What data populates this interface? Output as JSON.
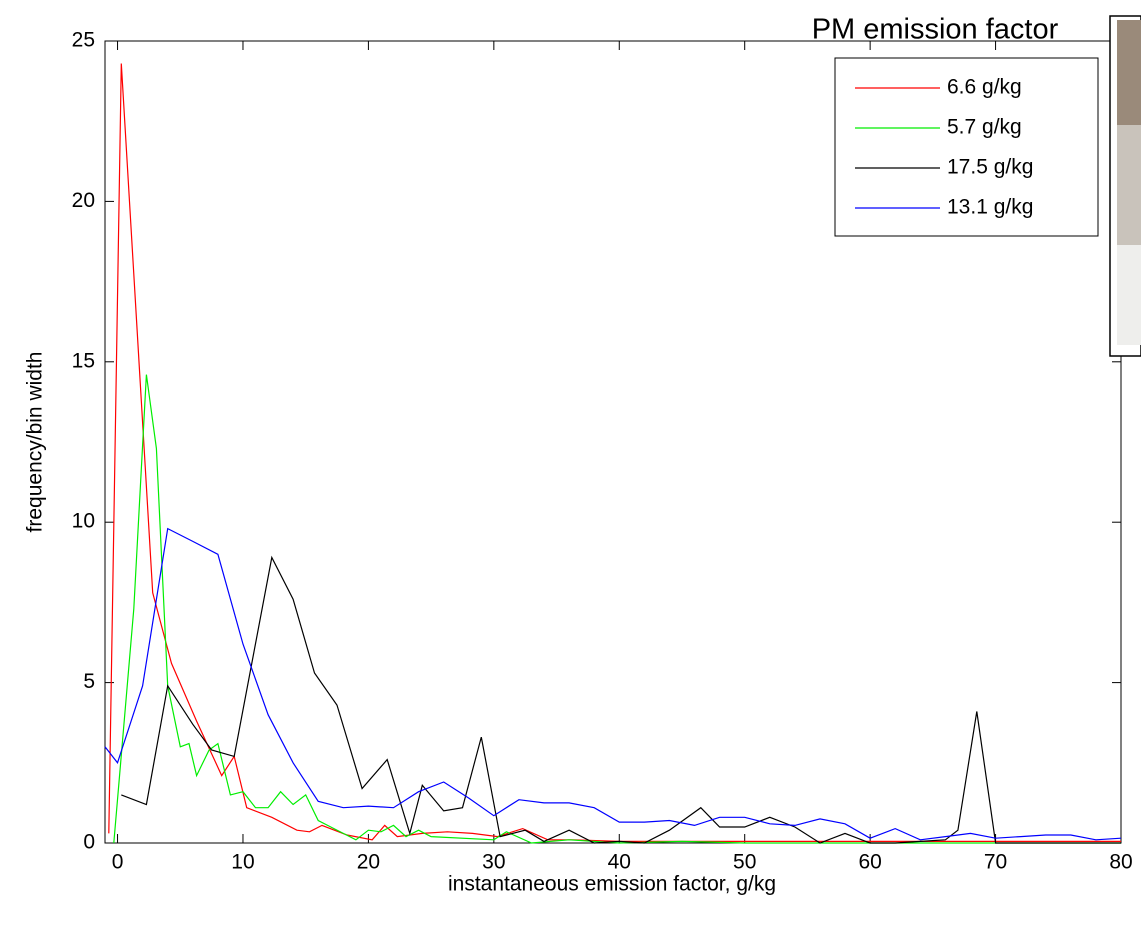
{
  "chart_data": {
    "type": "line",
    "title": "PM emission factor",
    "xlabel": "instantaneous emission factor, g/kg",
    "ylabel": "frequency/bin width",
    "xlim": [
      -1,
      80
    ],
    "ylim": [
      0,
      25
    ],
    "xticks": [
      0,
      10,
      20,
      30,
      40,
      50,
      60,
      70,
      80
    ],
    "yticks": [
      0,
      5,
      10,
      15,
      20,
      25
    ],
    "legend": "top-right",
    "series": [
      {
        "name": "6.6 g/kg",
        "color": "#ff0000",
        "x": [
          -0.7,
          0.3,
          2.8,
          4.3,
          6.3,
          8.3,
          9.3,
          10.3,
          12.3,
          14.3,
          15.3,
          16.3,
          18.3,
          20.3,
          21.3,
          22.3,
          24.3,
          26.3,
          28.3,
          30.3,
          32.3,
          34.3,
          36.3,
          40,
          50,
          60,
          70,
          80
        ],
        "values": [
          0.3,
          24.3,
          7.8,
          5.6,
          3.8,
          2.1,
          2.7,
          1.1,
          0.8,
          0.4,
          0.35,
          0.55,
          0.25,
          0.1,
          0.55,
          0.2,
          0.3,
          0.35,
          0.3,
          0.2,
          0.45,
          0.1,
          0.1,
          0.05,
          0.05,
          0.05,
          0.05,
          0.05
        ]
      },
      {
        "name": "5.7 g/kg",
        "color": "#00ee00",
        "x": [
          -0.3,
          1.3,
          2.3,
          3.1,
          4,
          5,
          5.7,
          6.3,
          7.3,
          8,
          9,
          10,
          11,
          12,
          13,
          14,
          15,
          16,
          17,
          18,
          19,
          20,
          21,
          22,
          23,
          24,
          25,
          30,
          31,
          33,
          36,
          40,
          45,
          50,
          60,
          70,
          80
        ],
        "values": [
          0,
          7.3,
          14.6,
          12.3,
          4.9,
          3.0,
          3.1,
          2.1,
          2.9,
          3.1,
          1.5,
          1.6,
          1.1,
          1.1,
          1.6,
          1.2,
          1.5,
          0.7,
          0.5,
          0.3,
          0.1,
          0.4,
          0.35,
          0.55,
          0.2,
          0.4,
          0.2,
          0.1,
          0.35,
          0,
          0.1,
          0,
          0.05,
          0,
          0,
          0,
          0
        ]
      },
      {
        "name": "17.5 g/kg",
        "color": "#000000",
        "x": [
          0.3,
          2.3,
          4,
          6,
          7.5,
          9.3,
          12.3,
          14,
          15.7,
          17.5,
          19.5,
          21.5,
          23.3,
          24.3,
          26,
          27.5,
          29,
          30.5,
          32.5,
          34,
          36,
          38,
          40,
          42,
          44,
          46.5,
          48,
          50,
          52,
          54,
          56,
          58,
          60,
          62,
          64,
          66,
          67,
          68.5,
          70,
          80
        ],
        "values": [
          1.5,
          1.2,
          4.9,
          3.7,
          2.9,
          2.7,
          8.9,
          7.6,
          5.3,
          4.3,
          1.7,
          2.6,
          0.3,
          1.8,
          1.0,
          1.1,
          3.3,
          0.2,
          0.4,
          0.05,
          0.4,
          0,
          0.05,
          0,
          0.4,
          1.1,
          0.5,
          0.5,
          0.8,
          0.5,
          0,
          0.3,
          0,
          0,
          0.05,
          0.1,
          0.4,
          4.1,
          0,
          0
        ]
      },
      {
        "name": "13.1 g/kg",
        "color": "#0000ff",
        "x": [
          -1,
          0,
          2,
          4,
          6,
          8,
          10,
          12,
          14,
          16,
          18,
          20,
          22,
          24,
          26,
          28,
          30,
          32,
          34,
          36,
          38,
          40,
          42,
          44,
          46,
          48,
          50,
          52,
          54,
          56,
          58,
          60,
          62,
          64,
          66,
          68,
          70,
          72,
          74,
          76,
          78,
          80
        ],
        "values": [
          3.0,
          2.5,
          4.9,
          9.8,
          9.4,
          9.0,
          6.2,
          4.0,
          2.5,
          1.3,
          1.1,
          1.15,
          1.1,
          1.6,
          1.9,
          1.4,
          0.85,
          1.35,
          1.25,
          1.25,
          1.1,
          0.65,
          0.65,
          0.7,
          0.55,
          0.8,
          0.8,
          0.6,
          0.55,
          0.75,
          0.6,
          0.15,
          0.45,
          0.1,
          0.2,
          0.3,
          0.15,
          0.2,
          0.25,
          0.25,
          0.1,
          0.15
        ]
      }
    ]
  }
}
